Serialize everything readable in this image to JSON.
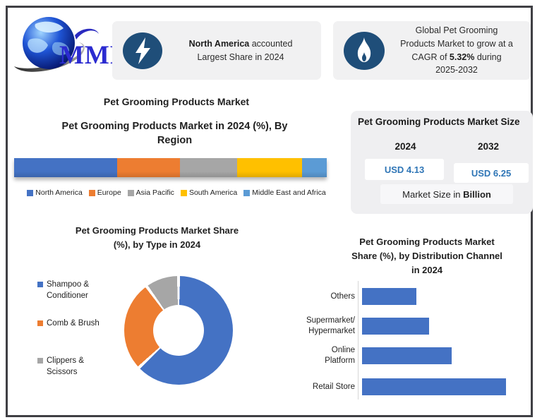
{
  "brand": {
    "name": "MMR"
  },
  "callouts": {
    "left": {
      "icon": "lightning",
      "line1_bold": "North America",
      "line1_rest": " accounted",
      "line2": "Largest Share in 2024"
    },
    "right": {
      "icon": "flame",
      "line1": "Global Pet Grooming",
      "line2": "Products Market to grow at a",
      "line3_pre": "CAGR of ",
      "line3_bold": "5.32%",
      "line3_post": " during",
      "line4": "2025-2032"
    }
  },
  "main_title": "Pet Grooming Products Market",
  "market_size": {
    "title": "Pet Grooming Products Market Size",
    "year_left": "2024",
    "year_right": "2032",
    "value_left": "USD 4.13",
    "value_right": "USD 6.25",
    "caption_pre": "Market Size in ",
    "caption_bold": "Billion",
    "value_color": "#2E75B6"
  },
  "colors": {
    "icon_circle": "#1F4E79",
    "box_bg": "#f1f1f2",
    "accent_blue": "#4472C4"
  },
  "chart_data": [
    {
      "id": "region_share",
      "type": "bar",
      "subtype": "stacked-horizontal-single",
      "title_lines": [
        "Pet Grooming Products Market  in 2024 (%), By",
        "Region"
      ],
      "legend_position": "bottom",
      "series": [
        {
          "name": "North America",
          "value": 33,
          "color": "#4472C4"
        },
        {
          "name": "Europe",
          "value": 20,
          "color": "#ED7D31"
        },
        {
          "name": "Asia Pacific",
          "value": 18.3,
          "color": "#A6A6A6"
        },
        {
          "name": "South America",
          "value": 20.7,
          "color": "#FFC000"
        },
        {
          "name": "Middle East and Africa",
          "value": 8,
          "color": "#5B9BD5"
        }
      ]
    },
    {
      "id": "type_share",
      "type": "pie",
      "subtype": "donut",
      "title_lines": [
        "Pet Grooming Products Market  Share",
        "(%), by   Type in 2024"
      ],
      "legend_position": "left",
      "slices": [
        {
          "name": "Shampoo &\nConditioner",
          "value": 63,
          "color": "#4472C4"
        },
        {
          "name": "Comb & Brush",
          "value": 27,
          "color": "#ED7D31"
        },
        {
          "name": "Clippers &\nScissors",
          "value": 10,
          "color": "#A6A6A6"
        }
      ]
    },
    {
      "id": "distribution_share",
      "type": "bar",
      "subtype": "horizontal",
      "title_lines": [
        "Pet Grooming Products Market",
        "Share (%), by  Distribution Channel",
        "in 2024"
      ],
      "categories": [
        "Others",
        "Supermarket/\nHypermarket",
        "Online\nPlatform",
        "Retail Store"
      ],
      "values": [
        17,
        21,
        28,
        45
      ],
      "bar_color": "#4472C4",
      "grid": false,
      "value_axis_shown": false
    }
  ]
}
